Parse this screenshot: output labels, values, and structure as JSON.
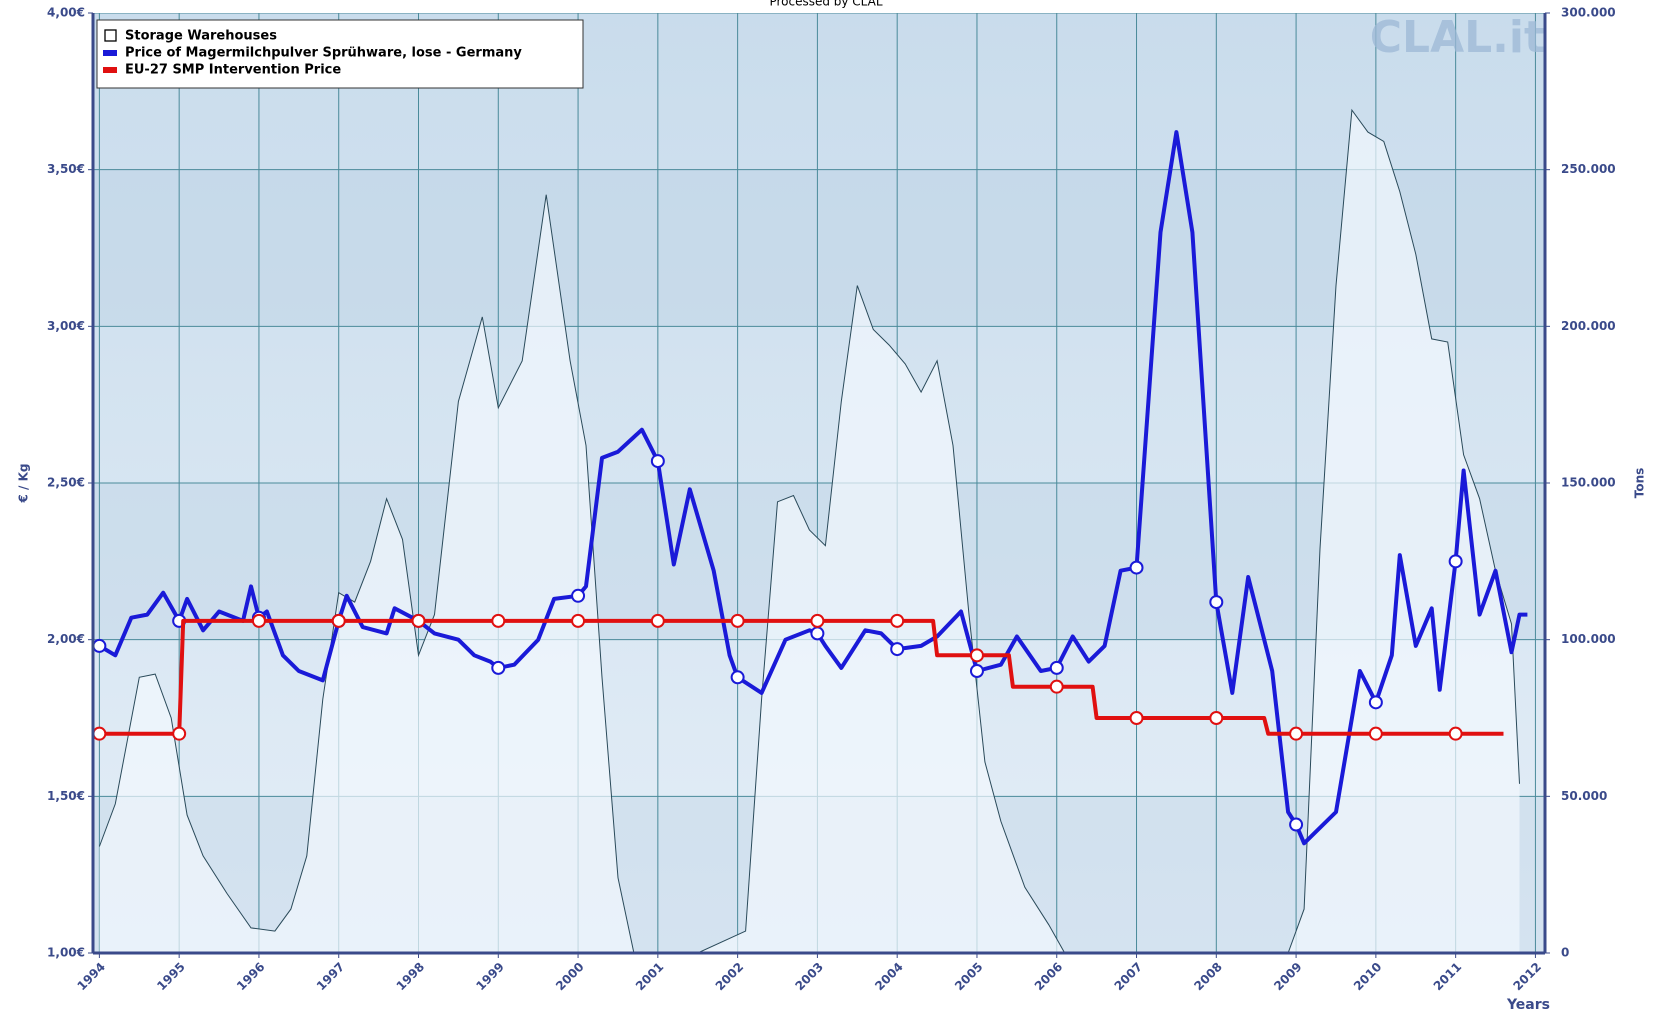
{
  "chart_data": {
    "type": "line",
    "subtitle": "Processed by CLAL",
    "watermark": "CLAL.it",
    "ylabel": "€ / Kg",
    "y2label": "Tons",
    "xlabel": "Years",
    "xlim": [
      1993.92,
      2012.12
    ],
    "xticks": [
      1994,
      1995,
      1996,
      1997,
      1998,
      1999,
      2000,
      2001,
      2002,
      2003,
      2004,
      2005,
      2006,
      2007,
      2008,
      2009,
      2010,
      2011,
      2012
    ],
    "ylim": [
      1,
      4
    ],
    "yticks": [
      {
        "value": 1,
        "label": "1,00€"
      },
      {
        "value": 1.5,
        "label": "1,50€"
      },
      {
        "value": 2,
        "label": "2,00€"
      },
      {
        "value": 2.5,
        "label": "2,50€"
      },
      {
        "value": 3,
        "label": "3,00€"
      },
      {
        "value": 3.5,
        "label": "3,50€"
      },
      {
        "value": 4,
        "label": "4,00€"
      }
    ],
    "y2lim": [
      0,
      300000
    ],
    "y2ticks": [
      0,
      {
        "value": 50000,
        "label": "50.000"
      },
      {
        "value": 100000,
        "label": "100.000"
      },
      {
        "value": 150000,
        "label": "150.000"
      },
      {
        "value": 200000,
        "label": "200.000"
      },
      {
        "value": 250000,
        "label": "250.000"
      },
      {
        "value": 300000,
        "label": "300.000"
      }
    ],
    "grid": true,
    "legend": "top-left",
    "series": [
      {
        "name": "Storage Warehouses",
        "color": "#2a4a5a",
        "fill": "#f2f8fd",
        "area": true,
        "axis": "y2",
        "x": [
          1994.0,
          1994.2,
          1994.5,
          1994.7,
          1994.9,
          1995.1,
          1995.3,
          1995.6,
          1995.9,
          1996.2,
          1996.4,
          1996.6,
          1996.8,
          1997.0,
          1997.2,
          1997.4,
          1997.6,
          1997.8,
          1998.0,
          1998.2,
          1998.5,
          1998.8,
          1999.0,
          1999.3,
          1999.6,
          1999.9,
          2000.1,
          2000.3,
          2000.5,
          2000.7,
          2001.5,
          2002.1,
          2002.3,
          2002.5,
          2002.7,
          2002.9,
          2003.1,
          2003.3,
          2003.5,
          2003.7,
          2003.9,
          2004.1,
          2004.3,
          2004.5,
          2004.7,
          2004.9,
          2005.1,
          2005.3,
          2005.6,
          2005.9,
          2006.1,
          2008.9,
          2009.1,
          2009.3,
          2009.5,
          2009.7,
          2009.9,
          2010.1,
          2010.3,
          2010.5,
          2010.7,
          2010.9,
          2011.1,
          2011.3,
          2011.5,
          2011.7,
          2011.8
        ],
        "values": [
          34000,
          47600,
          88000,
          89000,
          75000,
          44000,
          31000,
          19000,
          8000,
          7000,
          14000,
          31000,
          81000,
          115000,
          112000,
          125000,
          145000,
          132000,
          95000,
          108000,
          176000,
          203000,
          174000,
          189000,
          242000,
          189000,
          162000,
          88000,
          24000,
          0,
          0,
          7000,
          81000,
          144000,
          146000,
          135000,
          130000,
          176000,
          213000,
          199000,
          194000,
          188000,
          179000,
          189000,
          162000,
          108000,
          61000,
          42000,
          21000,
          9000,
          0,
          0,
          14000,
          129000,
          213000,
          269000,
          262000,
          259000,
          243000,
          223000,
          196000,
          195000,
          159000,
          145000,
          122000,
          105000,
          54000
        ]
      },
      {
        "name": "Price of Magermilchpulver Sprühware, lose - Germany",
        "color": "#1a1ad8",
        "axis": "y",
        "x": [
          1994.0,
          1994.2,
          1994.4,
          1994.6,
          1994.8,
          1995.0,
          1995.1,
          1995.3,
          1995.5,
          1995.8,
          1995.9,
          1996.0,
          1996.1,
          1996.3,
          1996.5,
          1996.8,
          1997.0,
          1997.1,
          1997.3,
          1997.6,
          1997.7,
          1998.0,
          1998.2,
          1998.5,
          1998.7,
          1998.9,
          1999.0,
          1999.2,
          1999.5,
          1999.7,
          2000.0,
          2000.1,
          2000.3,
          2000.5,
          2000.8,
          2001.0,
          2001.2,
          2001.4,
          2001.7,
          2001.9,
          2002.0,
          2002.3,
          2002.6,
          2002.9,
          2003.0,
          2003.1,
          2003.3,
          2003.6,
          2003.8,
          2004.0,
          2004.3,
          2004.5,
          2004.8,
          2005.0,
          2005.3,
          2005.5,
          2005.8,
          2006.0,
          2006.2,
          2006.4,
          2006.6,
          2006.8,
          2007.0,
          2007.3,
          2007.5,
          2007.7,
          2008.0,
          2008.2,
          2008.4,
          2008.7,
          2008.9,
          2009.0,
          2009.1,
          2009.5,
          2009.8,
          2010.0,
          2010.2,
          2010.3,
          2010.5,
          2010.7,
          2010.8,
          2011.0,
          2011.1,
          2011.3,
          2011.5,
          2011.7,
          2011.8,
          2011.9
        ],
        "values": [
          1.98,
          1.95,
          2.07,
          2.08,
          2.15,
          2.06,
          2.13,
          2.03,
          2.09,
          2.06,
          2.17,
          2.07,
          2.09,
          1.95,
          1.9,
          1.87,
          2.06,
          2.14,
          2.04,
          2.02,
          2.1,
          2.06,
          2.02,
          2.0,
          1.95,
          1.93,
          1.91,
          1.92,
          2.0,
          2.13,
          2.14,
          2.17,
          2.58,
          2.6,
          2.67,
          2.57,
          2.24,
          2.48,
          2.22,
          1.95,
          1.88,
          1.83,
          2.0,
          2.03,
          2.02,
          1.98,
          1.91,
          2.03,
          2.02,
          1.97,
          1.98,
          2.01,
          2.09,
          1.9,
          1.92,
          2.01,
          1.9,
          1.91,
          2.01,
          1.93,
          1.98,
          2.22,
          2.23,
          3.3,
          3.62,
          3.3,
          2.12,
          1.83,
          2.2,
          1.9,
          1.45,
          1.41,
          1.35,
          1.45,
          1.9,
          1.8,
          1.95,
          2.27,
          1.98,
          2.1,
          1.84,
          2.25,
          2.54,
          2.08,
          2.22,
          1.96,
          2.08,
          2.08
        ]
      },
      {
        "name": "EU-27 SMP Intervention Price",
        "color": "#e01010",
        "axis": "y",
        "x": [
          1994,
          1995,
          1995.05,
          1996,
          1997,
          1998,
          1999,
          2000,
          2001,
          2002,
          2003,
          2004,
          2004.45,
          2004.5,
          2005,
          2005.4,
          2005.45,
          2006,
          2006.45,
          2006.5,
          2007,
          2008,
          2008.6,
          2008.65,
          2009,
          2010,
          2011,
          2011.6
        ],
        "values": [
          1.7,
          1.7,
          2.06,
          2.06,
          2.06,
          2.06,
          2.06,
          2.06,
          2.06,
          2.06,
          2.06,
          2.06,
          2.06,
          1.95,
          1.95,
          1.95,
          1.85,
          1.85,
          1.85,
          1.75,
          1.75,
          1.75,
          1.75,
          1.7,
          1.7,
          1.7,
          1.7,
          1.7
        ]
      }
    ]
  }
}
